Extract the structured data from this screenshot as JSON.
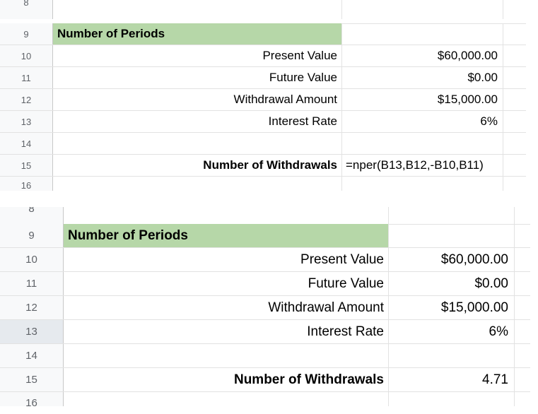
{
  "top_sheet": {
    "partial_row_above": "8",
    "rows": [
      {
        "num": "9",
        "label": "Number of Periods",
        "value": ""
      },
      {
        "num": "10",
        "label": "Present Value",
        "value": "$60,000.00"
      },
      {
        "num": "11",
        "label": "Future Value",
        "value": "$0.00"
      },
      {
        "num": "12",
        "label": "Withdrawal Amount",
        "value": "$15,000.00"
      },
      {
        "num": "13",
        "label": "Interest Rate",
        "value": "6%"
      },
      {
        "num": "14",
        "label": "",
        "value": ""
      },
      {
        "num": "15",
        "label": "Number of Withdrawals",
        "value": "=nper(B13,B12,-B10,B11)"
      }
    ],
    "partial_row_below": "16"
  },
  "bottom_sheet": {
    "partial_row_above": "8",
    "selected_row": "13",
    "rows": [
      {
        "num": "9",
        "label": "Number of Periods",
        "value": ""
      },
      {
        "num": "10",
        "label": "Present Value",
        "value": "$60,000.00"
      },
      {
        "num": "11",
        "label": "Future Value",
        "value": "$0.00"
      },
      {
        "num": "12",
        "label": "Withdrawal Amount",
        "value": "$15,000.00"
      },
      {
        "num": "13",
        "label": "Interest Rate",
        "value": "6%"
      },
      {
        "num": "14",
        "label": "",
        "value": ""
      },
      {
        "num": "15",
        "label": "Number of Withdrawals",
        "value": "4.71"
      }
    ],
    "partial_row_below": "16"
  },
  "colors": {
    "header_fill": "#b6d7a8",
    "row_header_bg": "#f8f9fa",
    "selected_row_header_bg": "#e6eaee",
    "grid_line": "#e2e2e2"
  }
}
